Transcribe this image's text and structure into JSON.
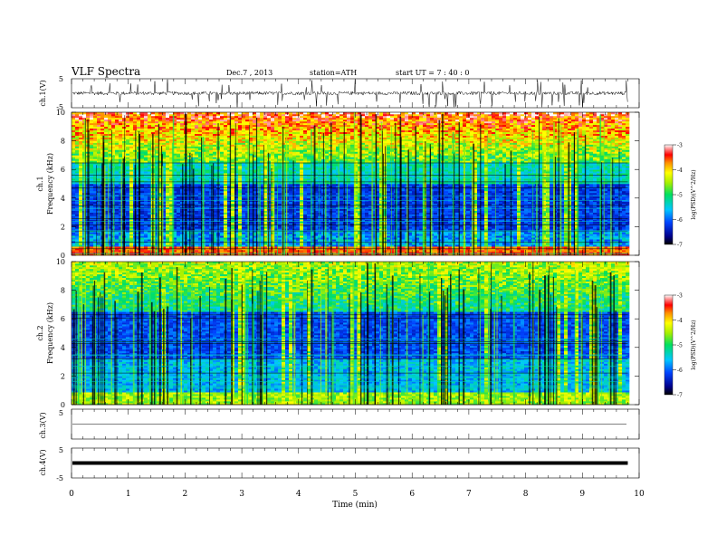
{
  "header": {
    "title": "VLF  Spectra",
    "date": "Dec.7  , 2013",
    "station": "station=ATH",
    "start": "start  UT  =   7 : 40 : 0"
  },
  "chart_data": [
    {
      "type": "line",
      "panel": "ch1-waveform",
      "ylabel": "ch.1(V)",
      "ylim": [
        -5,
        5
      ],
      "yticks": [
        "5",
        "-5"
      ],
      "xlim": [
        0,
        10
      ],
      "baseline": 0.0,
      "noise_amplitude": 0.6,
      "spike_amplitude": 4.8
    },
    {
      "type": "heatmap",
      "panel": "ch1-spectrogram",
      "ylabel": "ch.1",
      "ylabel2": "Frequency  (kHz)",
      "ylim": [
        0,
        10
      ],
      "yticks": [
        "0",
        "2",
        "4",
        "6",
        "8",
        "10"
      ],
      "xlim": [
        0,
        10
      ],
      "data_end_min": 9.8,
      "colorbar": {
        "label": "log(PSD)(V^2/Hz)",
        "range": [
          -7,
          -3
        ],
        "ticks": [
          "-3",
          "-4",
          "-5",
          "-6",
          "-7"
        ]
      }
    },
    {
      "type": "heatmap",
      "panel": "ch2-spectrogram",
      "ylabel": "ch.2",
      "ylabel2": "Frequency  (kHz)",
      "ylim": [
        0,
        10
      ],
      "yticks": [
        "0",
        "2",
        "4",
        "6",
        "8",
        "10"
      ],
      "xlim": [
        0,
        10
      ],
      "data_end_min": 9.8,
      "colorbar": {
        "label": "log(PSD)(V^2/Hz)",
        "range": [
          -7,
          -3
        ],
        "ticks": [
          "-3",
          "-4",
          "-5",
          "-6",
          "-7"
        ]
      }
    },
    {
      "type": "line",
      "panel": "ch3-waveform",
      "ylabel": "ch.3(V)",
      "ylim": [
        -5,
        5
      ],
      "yticks": [
        "5"
      ],
      "xlim": [
        0,
        10
      ],
      "baseline": 0.0
    },
    {
      "type": "line",
      "panel": "ch4-waveform",
      "ylabel": "ch.4(V)",
      "ylim": [
        -5,
        5
      ],
      "yticks": [
        "5",
        "-5"
      ],
      "xlim": [
        0,
        10
      ],
      "baseline": 0.0
    }
  ],
  "xaxis": {
    "label": "Time  (min)",
    "ticks": [
      "0",
      "1",
      "2",
      "3",
      "4",
      "5",
      "6",
      "7",
      "8",
      "9",
      "10"
    ]
  }
}
